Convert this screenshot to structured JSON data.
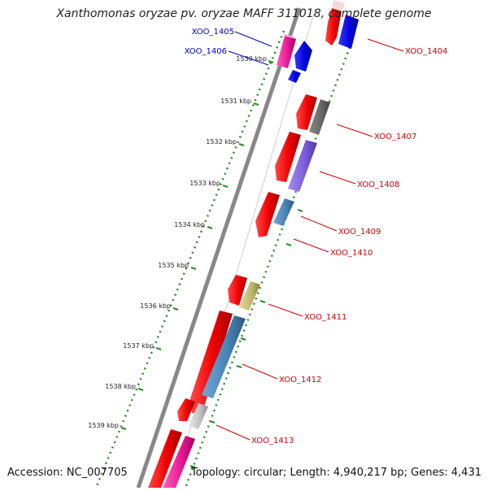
{
  "title": "Xanthomonas oryzae pv. oryzae MAFF 311018, complete genome",
  "footer": {
    "accession": "Accession: NC_007705",
    "summary": "Topology: circular; Length: 4,940,217 bp; Genes: 4,431"
  },
  "ruler": {
    "unit": "kbp",
    "ticks": [
      {
        "label": "1530 kbp",
        "kbp": 1530
      },
      {
        "label": "1531 kbp",
        "kbp": 1531
      },
      {
        "label": "1532 kbp",
        "kbp": 1532
      },
      {
        "label": "1533 kbp",
        "kbp": 1533
      },
      {
        "label": "1534 kbp",
        "kbp": 1534
      },
      {
        "label": "1535 kbp",
        "kbp": 1535
      },
      {
        "label": "1536 kbp",
        "kbp": 1536
      },
      {
        "label": "1537 kbp",
        "kbp": 1537
      },
      {
        "label": "1538 kbp",
        "kbp": 1538
      },
      {
        "label": "1539 kbp",
        "kbp": 1539
      }
    ]
  },
  "genes": [
    {
      "label": "XOO_1404",
      "label_color": "#cc0000",
      "side": "right"
    },
    {
      "label": "XOO_1405",
      "label_color": "#0000cc",
      "side": "left"
    },
    {
      "label": "XOO_1406",
      "label_color": "#0000cc",
      "side": "left"
    },
    {
      "label": "XOO_1407",
      "label_color": "#cc0000",
      "side": "right"
    },
    {
      "label": "XOO_1408",
      "label_color": "#cc0000",
      "side": "right"
    },
    {
      "label": "XOO_1409",
      "label_color": "#cc0000",
      "side": "right"
    },
    {
      "label": "XOO_1410",
      "label_color": "#cc0000",
      "side": "right"
    },
    {
      "label": "XOO_1411",
      "label_color": "#cc0000",
      "side": "right"
    },
    {
      "label": "XOO_1412",
      "label_color": "#cc0000",
      "side": "right"
    },
    {
      "label": "XOO_1413",
      "label_color": "#cc0000",
      "side": "right"
    }
  ],
  "colors": {
    "backbone": "#888888",
    "forward_cds": "#ee0000",
    "tick_green": "#2a8a2a"
  }
}
